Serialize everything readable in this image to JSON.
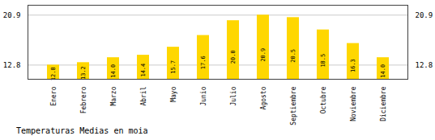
{
  "chart_data": {
    "type": "bar",
    "title": "Temperaturas Medias en moia",
    "categories": [
      "Enero",
      "Febrero",
      "Marzo",
      "Abril",
      "Mayo",
      "Junio",
      "Julio",
      "Agosto",
      "Septiembre",
      "Octubre",
      "Noviembre",
      "Diciembre"
    ],
    "values": [
      12.8,
      13.2,
      14.0,
      14.4,
      15.7,
      17.6,
      20.0,
      20.9,
      20.5,
      18.5,
      16.3,
      14.0
    ],
    "value_labels": [
      "12.8",
      "13.2",
      "14.0",
      "14.4",
      "15.7",
      "17.6",
      "20.0",
      "20.9",
      "20.5",
      "18.5",
      "16.3",
      "14.0"
    ],
    "color": "#FFD700",
    "ylim": [
      10.5,
      22.5
    ],
    "yticks": [
      12.8,
      20.9
    ],
    "grid": true,
    "data_labels": true
  }
}
